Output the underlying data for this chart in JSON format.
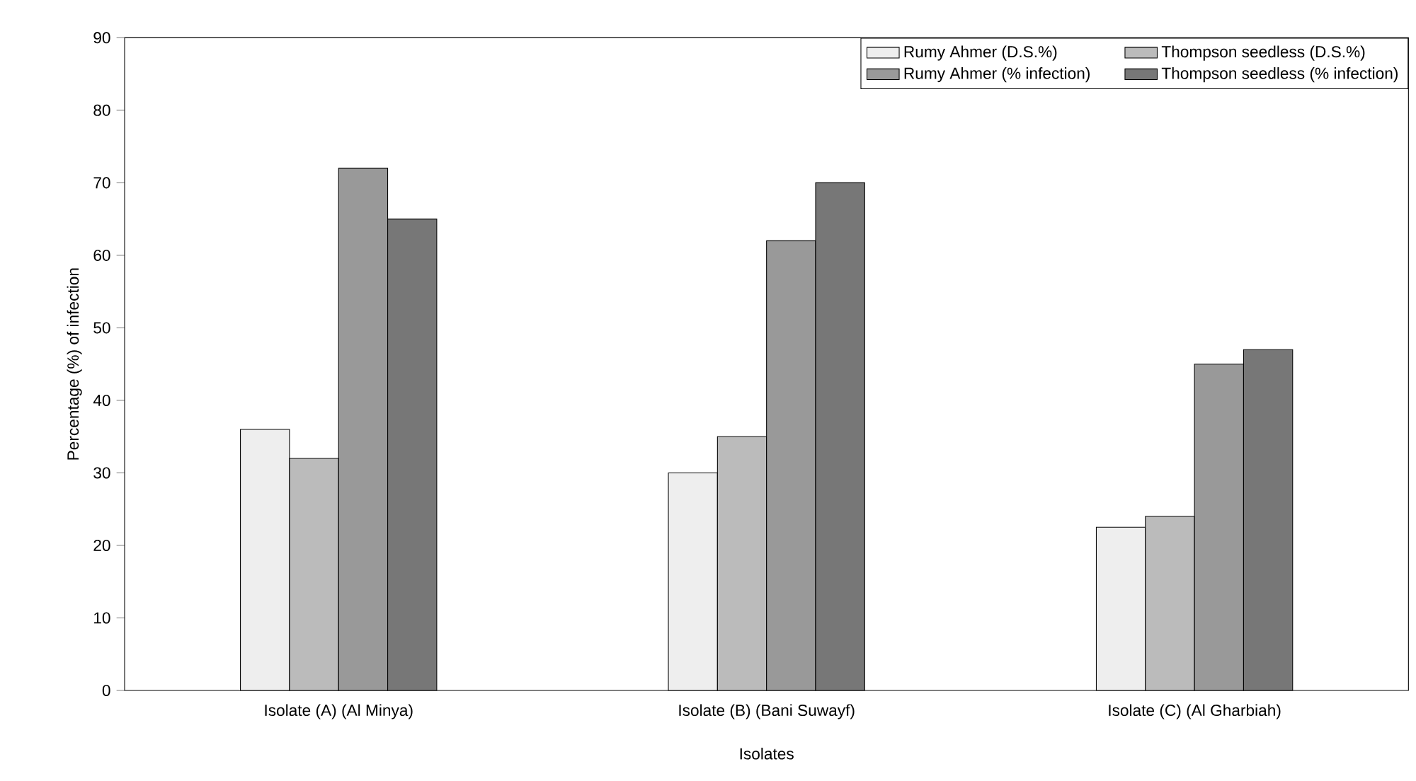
{
  "chart_data": {
    "type": "bar",
    "xlabel": "Isolates",
    "ylabel": "Percentage (%) of infection",
    "categories": [
      "Isolate (A) (Al Minya)",
      "Isolate (B) (Bani Suwayf)",
      "Isolate (C) (Al Gharbiah)"
    ],
    "series": [
      {
        "name": "Rumy Ahmer (D.S.%)",
        "color": "#eeeeee",
        "values": [
          36,
          30,
          22.5
        ]
      },
      {
        "name": "Thompson seedless (D.S.%)",
        "color": "#bbbbbb",
        "values": [
          32,
          35,
          24
        ]
      },
      {
        "name": "Rumy Ahmer (% infection)",
        "color": "#999999",
        "values": [
          72,
          62,
          45
        ]
      },
      {
        "name": "Thompson seedless (% infection)",
        "color": "#777777",
        "values": [
          65,
          70,
          47
        ]
      }
    ],
    "ylim": [
      0,
      90
    ],
    "yticks": [
      0,
      10,
      20,
      30,
      40,
      50,
      60,
      70,
      80,
      90
    ],
    "grid": false,
    "legend": "top right"
  }
}
